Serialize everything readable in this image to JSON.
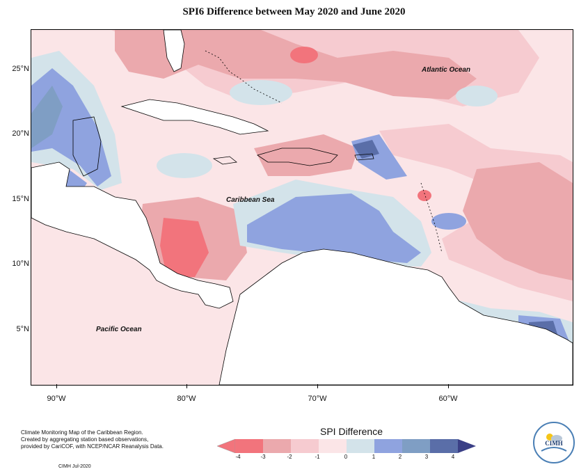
{
  "title": "SPI6 Difference between May 2020 and June 2020",
  "axes": {
    "lat_labels": [
      "25°N",
      "20°N",
      "15°N",
      "10°N",
      "5°N"
    ],
    "lon_labels": [
      "90°W",
      "80°W",
      "70°W",
      "60°W"
    ]
  },
  "places": {
    "atlantic": "Atlantic Ocean",
    "caribbean": "Caribbean Sea",
    "pacific": "Pacific Ocean"
  },
  "footer": {
    "line1": "Climate Monitoring Map of the Caribbean Region.",
    "line2": "Created by aggregating station based observations,",
    "line3": "provided by CariCOF, with NCEP/NCAR Reanalysis Data.",
    "date": "CIMH Jul-2020"
  },
  "legend": {
    "title": "SPI Difference",
    "ticks": [
      "-4",
      "-3",
      "-2",
      "-1",
      "0",
      "1",
      "2",
      "3",
      "4"
    ],
    "colors": [
      "#f2747c",
      "#eba9ad",
      "#f6cbd0",
      "#fbe5e7",
      "#d3e3ea",
      "#8fa3df",
      "#7f9ec4",
      "#5a6ea8",
      "#3a3f86"
    ]
  },
  "logo": {
    "text": "CIMH"
  },
  "colors": {
    "neg3": "#f2747c",
    "neg2": "#eba9ad",
    "neg1": "#f6cbd0",
    "neg0": "#fbe5e7",
    "pos0": "#d3e3ea",
    "pos1": "#8fa3df",
    "pos2": "#7f9ec4",
    "pos3": "#5a6ea8"
  }
}
